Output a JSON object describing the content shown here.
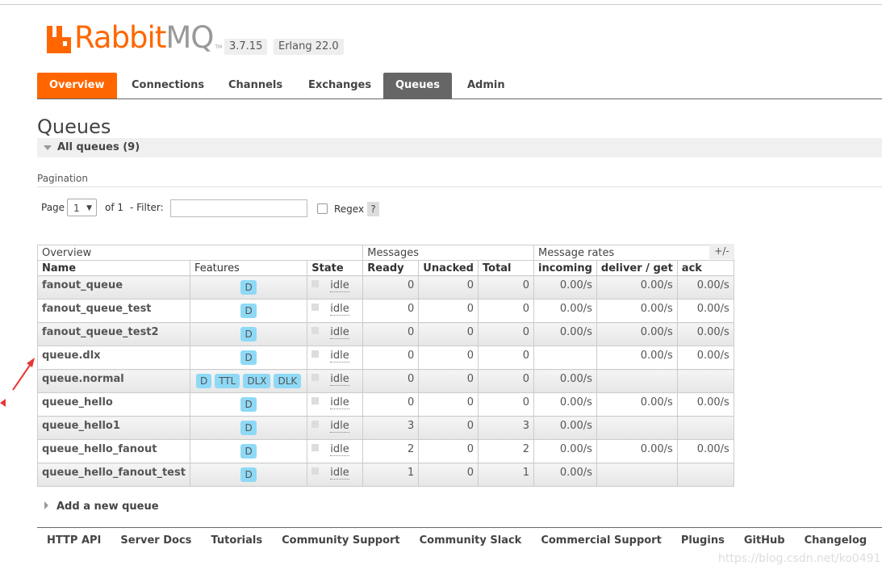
{
  "header": {
    "logo_rabbit": "Rabbit",
    "logo_mq": "MQ",
    "logo_tm": "TM",
    "version": "3.7.15",
    "erlang": "Erlang 22.0"
  },
  "tabs": [
    "Overview",
    "Connections",
    "Channels",
    "Exchanges",
    "Queues",
    "Admin"
  ],
  "page": {
    "title": "Queues",
    "section": "All queues (9)",
    "pagination_label": "Pagination",
    "page_label": "Page",
    "page_value": "1",
    "of_label": "of 1",
    "filter_label": "- Filter:",
    "filter_value": "",
    "regex_label": "Regex",
    "help": "?"
  },
  "table": {
    "groups": [
      "Overview",
      "Messages",
      "Message rates"
    ],
    "plus_minus": "+/-",
    "columns": [
      "Name",
      "Features",
      "State",
      "Ready",
      "Unacked",
      "Total",
      "incoming",
      "deliver / get",
      "ack"
    ],
    "rows": [
      {
        "name": "fanout_queue",
        "features": [
          "D"
        ],
        "state": "idle",
        "ready": "0",
        "unacked": "0",
        "total": "0",
        "incoming": "0.00/s",
        "deliver": "0.00/s",
        "ack": "0.00/s"
      },
      {
        "name": "fanout_queue_test",
        "features": [
          "D"
        ],
        "state": "idle",
        "ready": "0",
        "unacked": "0",
        "total": "0",
        "incoming": "0.00/s",
        "deliver": "0.00/s",
        "ack": "0.00/s"
      },
      {
        "name": "fanout_queue_test2",
        "features": [
          "D"
        ],
        "state": "idle",
        "ready": "0",
        "unacked": "0",
        "total": "0",
        "incoming": "0.00/s",
        "deliver": "0.00/s",
        "ack": "0.00/s"
      },
      {
        "name": "queue.dlx",
        "features": [
          "D"
        ],
        "state": "idle",
        "ready": "0",
        "unacked": "0",
        "total": "0",
        "incoming": "",
        "deliver": "0.00/s",
        "ack": "0.00/s"
      },
      {
        "name": "queue.normal",
        "features": [
          "D",
          "TTL",
          "DLX",
          "DLK"
        ],
        "state": "idle",
        "ready": "0",
        "unacked": "0",
        "total": "0",
        "incoming": "0.00/s",
        "deliver": "",
        "ack": ""
      },
      {
        "name": "queue_hello",
        "features": [
          "D"
        ],
        "state": "idle",
        "ready": "0",
        "unacked": "0",
        "total": "0",
        "incoming": "0.00/s",
        "deliver": "0.00/s",
        "ack": "0.00/s"
      },
      {
        "name": "queue_hello1",
        "features": [
          "D"
        ],
        "state": "idle",
        "ready": "3",
        "unacked": "0",
        "total": "3",
        "incoming": "0.00/s",
        "deliver": "",
        "ack": ""
      },
      {
        "name": "queue_hello_fanout",
        "features": [
          "D"
        ],
        "state": "idle",
        "ready": "2",
        "unacked": "0",
        "total": "2",
        "incoming": "0.00/s",
        "deliver": "0.00/s",
        "ack": "0.00/s"
      },
      {
        "name": "queue_hello_fanout_test",
        "features": [
          "D"
        ],
        "state": "idle",
        "ready": "1",
        "unacked": "0",
        "total": "1",
        "incoming": "0.00/s",
        "deliver": "",
        "ack": ""
      }
    ]
  },
  "add_queue": "Add a new queue",
  "footer": [
    "HTTP API",
    "Server Docs",
    "Tutorials",
    "Community Support",
    "Community Slack",
    "Commercial Support",
    "Plugins",
    "GitHub",
    "Changelog"
  ],
  "watermark": "https://blog.csdn.net/ko0491",
  "colors": {
    "brand": "#ff6600",
    "queues_tab": "#666666",
    "feature_badge": "#8ed9f6",
    "annotation_arrow": "#e53935"
  }
}
